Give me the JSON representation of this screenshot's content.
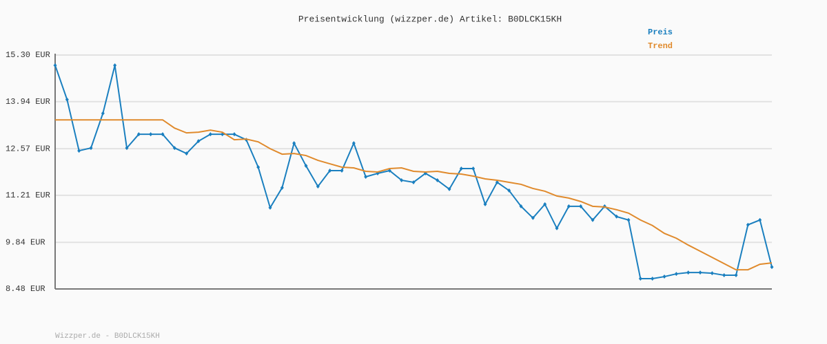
{
  "chart_data": {
    "type": "line",
    "title": "Preisentwicklung (wizzper.de) Artikel: B0DLCK15KH",
    "footer": "Wizzper.de - B0DLCK15KH",
    "ylim": [
      8.48,
      15.3
    ],
    "yticks": [
      {
        "value": 8.48,
        "label": "8.48 EUR"
      },
      {
        "value": 9.84,
        "label": "9.84 EUR"
      },
      {
        "value": 11.21,
        "label": "11.21 EUR"
      },
      {
        "value": 12.57,
        "label": "12.57 EUR"
      },
      {
        "value": 13.94,
        "label": "13.94 EUR"
      },
      {
        "value": 15.3,
        "label": "15.30 EUR"
      }
    ],
    "grid": true,
    "legend": "top-right",
    "series": [
      {
        "name": "Preis",
        "color": "#1a7fbf",
        "markers": true,
        "values": [
          15.0,
          14.0,
          12.51,
          12.59,
          13.6,
          15.0,
          12.59,
          12.99,
          12.99,
          12.99,
          12.59,
          12.43,
          12.79,
          12.99,
          12.99,
          12.99,
          12.83,
          12.03,
          10.85,
          11.43,
          12.73,
          12.07,
          11.47,
          11.93,
          11.93,
          12.73,
          11.75,
          11.85,
          11.93,
          11.65,
          11.59,
          11.85,
          11.65,
          11.39,
          11.99,
          11.99,
          10.95,
          11.59,
          11.35,
          10.89,
          10.55,
          10.95,
          10.25,
          10.89,
          10.89,
          10.49,
          10.89,
          10.59,
          10.49,
          8.78,
          8.78,
          8.84,
          8.92,
          8.96,
          8.96,
          8.94,
          8.88,
          8.88,
          10.35,
          10.49,
          9.12
        ]
      },
      {
        "name": "Trend",
        "color": "#e08a2c",
        "markers": false,
        "values": [
          13.41,
          13.41,
          13.41,
          13.41,
          13.41,
          13.41,
          13.41,
          13.41,
          13.41,
          13.41,
          13.17,
          13.03,
          13.05,
          13.11,
          13.05,
          12.83,
          12.85,
          12.77,
          12.57,
          12.41,
          12.43,
          12.37,
          12.23,
          12.13,
          12.03,
          12.01,
          11.91,
          11.89,
          11.99,
          12.01,
          11.91,
          11.89,
          11.91,
          11.85,
          11.83,
          11.77,
          11.69,
          11.65,
          11.59,
          11.53,
          11.41,
          11.33,
          11.19,
          11.13,
          11.03,
          10.89,
          10.87,
          10.79,
          10.69,
          10.49,
          10.33,
          10.1,
          9.96,
          9.76,
          9.58,
          9.4,
          9.22,
          9.04,
          9.04,
          9.2,
          9.24
        ]
      }
    ]
  }
}
